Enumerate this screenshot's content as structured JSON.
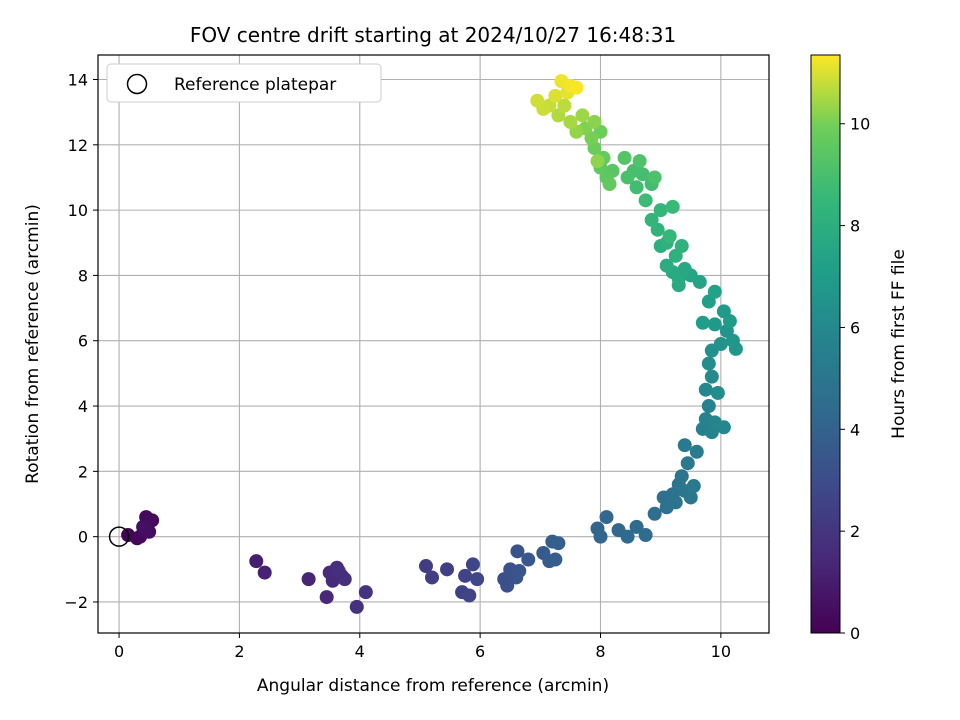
{
  "chart_data": {
    "type": "scatter",
    "title": "FOV centre drift starting at 2024/10/27 16:48:31",
    "xlabel": "Angular distance from reference (arcmin)",
    "ylabel": "Rotation from reference (arcmin)",
    "xlim": [
      -0.35,
      10.8
    ],
    "ylim": [
      -2.95,
      14.75
    ],
    "xticks": [
      0,
      2,
      4,
      6,
      8,
      10
    ],
    "yticks": [
      -2,
      0,
      2,
      4,
      6,
      8,
      10,
      12,
      14
    ],
    "grid": true,
    "colormap": "viridis",
    "colorbar": {
      "label": "Hours from first FF file",
      "range": [
        0,
        11.35
      ],
      "ticks": [
        0,
        2,
        4,
        6,
        8,
        10
      ]
    },
    "legend": {
      "placement": "top-left",
      "entries": [
        {
          "label": "Reference platepar",
          "marker": "open-circle",
          "color": "#000000"
        }
      ]
    },
    "reference_point": {
      "x": 0,
      "y": 0
    },
    "points": [
      {
        "x": 0.15,
        "y": 0.05,
        "c": 0.1
      },
      {
        "x": 0.3,
        "y": -0.05,
        "c": 0.2
      },
      {
        "x": 0.35,
        "y": 0.0,
        "c": 0.25
      },
      {
        "x": 0.45,
        "y": 0.6,
        "c": 0.3
      },
      {
        "x": 0.55,
        "y": 0.5,
        "c": 0.35
      },
      {
        "x": 0.42,
        "y": 0.2,
        "c": 0.4
      },
      {
        "x": 0.5,
        "y": 0.15,
        "c": 0.45
      },
      {
        "x": 0.4,
        "y": 0.3,
        "c": 0.5
      },
      {
        "x": 2.28,
        "y": -0.75,
        "c": 1.1
      },
      {
        "x": 2.42,
        "y": -1.1,
        "c": 1.2
      },
      {
        "x": 3.15,
        "y": -1.3,
        "c": 1.35
      },
      {
        "x": 3.45,
        "y": -1.85,
        "c": 1.45
      },
      {
        "x": 3.5,
        "y": -1.1,
        "c": 1.5
      },
      {
        "x": 3.55,
        "y": -1.35,
        "c": 1.55
      },
      {
        "x": 3.62,
        "y": -0.95,
        "c": 1.6
      },
      {
        "x": 3.7,
        "y": -1.2,
        "c": 1.65
      },
      {
        "x": 3.75,
        "y": -1.3,
        "c": 1.7
      },
      {
        "x": 3.65,
        "y": -1.05,
        "c": 1.72
      },
      {
        "x": 3.95,
        "y": -2.15,
        "c": 1.8
      },
      {
        "x": 4.1,
        "y": -1.7,
        "c": 1.9
      },
      {
        "x": 5.1,
        "y": -0.9,
        "c": 2.3
      },
      {
        "x": 5.2,
        "y": -1.25,
        "c": 2.35
      },
      {
        "x": 5.45,
        "y": -1.0,
        "c": 2.45
      },
      {
        "x": 5.7,
        "y": -1.7,
        "c": 2.55
      },
      {
        "x": 5.75,
        "y": -1.2,
        "c": 2.6
      },
      {
        "x": 5.82,
        "y": -1.8,
        "c": 2.65
      },
      {
        "x": 5.88,
        "y": -0.85,
        "c": 2.7
      },
      {
        "x": 5.95,
        "y": -1.3,
        "c": 2.75
      },
      {
        "x": 6.4,
        "y": -1.3,
        "c": 3.1
      },
      {
        "x": 6.45,
        "y": -1.5,
        "c": 3.15
      },
      {
        "x": 6.5,
        "y": -1.0,
        "c": 3.2
      },
      {
        "x": 6.55,
        "y": -1.15,
        "c": 3.25
      },
      {
        "x": 6.6,
        "y": -1.25,
        "c": 3.3
      },
      {
        "x": 6.62,
        "y": -0.45,
        "c": 3.35
      },
      {
        "x": 6.65,
        "y": -1.05,
        "c": 3.4
      },
      {
        "x": 6.8,
        "y": -0.7,
        "c": 3.5
      },
      {
        "x": 7.05,
        "y": -0.5,
        "c": 3.6
      },
      {
        "x": 7.15,
        "y": -0.75,
        "c": 3.7
      },
      {
        "x": 7.25,
        "y": -0.7,
        "c": 3.75
      },
      {
        "x": 7.2,
        "y": -0.15,
        "c": 3.8
      },
      {
        "x": 7.3,
        "y": -0.2,
        "c": 3.85
      },
      {
        "x": 7.95,
        "y": 0.25,
        "c": 4.1
      },
      {
        "x": 8.0,
        "y": 0.0,
        "c": 4.15
      },
      {
        "x": 8.1,
        "y": 0.6,
        "c": 4.2
      },
      {
        "x": 8.3,
        "y": 0.2,
        "c": 4.3
      },
      {
        "x": 8.45,
        "y": 0.0,
        "c": 4.35
      },
      {
        "x": 8.6,
        "y": 0.3,
        "c": 4.4
      },
      {
        "x": 8.75,
        "y": 0.05,
        "c": 4.5
      },
      {
        "x": 8.9,
        "y": 0.7,
        "c": 4.6
      },
      {
        "x": 9.05,
        "y": 1.2,
        "c": 4.7
      },
      {
        "x": 9.1,
        "y": 0.9,
        "c": 4.75
      },
      {
        "x": 9.2,
        "y": 1.3,
        "c": 4.8
      },
      {
        "x": 9.25,
        "y": 1.05,
        "c": 4.85
      },
      {
        "x": 9.3,
        "y": 1.6,
        "c": 4.9
      },
      {
        "x": 9.35,
        "y": 1.85,
        "c": 4.95
      },
      {
        "x": 9.4,
        "y": 1.4,
        "c": 5.0
      },
      {
        "x": 9.45,
        "y": 2.25,
        "c": 5.05
      },
      {
        "x": 9.5,
        "y": 1.2,
        "c": 5.1
      },
      {
        "x": 9.4,
        "y": 2.8,
        "c": 5.2
      },
      {
        "x": 9.55,
        "y": 1.55,
        "c": 5.25
      },
      {
        "x": 9.6,
        "y": 2.6,
        "c": 5.35
      },
      {
        "x": 9.7,
        "y": 3.3,
        "c": 5.5
      },
      {
        "x": 9.75,
        "y": 3.6,
        "c": 5.6
      },
      {
        "x": 9.8,
        "y": 4.0,
        "c": 5.7
      },
      {
        "x": 9.85,
        "y": 3.2,
        "c": 5.75
      },
      {
        "x": 9.9,
        "y": 3.5,
        "c": 5.8
      },
      {
        "x": 10.05,
        "y": 3.35,
        "c": 5.9
      },
      {
        "x": 9.75,
        "y": 4.5,
        "c": 6.0
      },
      {
        "x": 9.85,
        "y": 4.9,
        "c": 6.1
      },
      {
        "x": 9.95,
        "y": 4.4,
        "c": 6.2
      },
      {
        "x": 9.8,
        "y": 5.3,
        "c": 6.3
      },
      {
        "x": 9.85,
        "y": 5.7,
        "c": 6.4
      },
      {
        "x": 10.0,
        "y": 5.9,
        "c": 6.5
      },
      {
        "x": 10.1,
        "y": 6.3,
        "c": 6.6
      },
      {
        "x": 10.2,
        "y": 6.0,
        "c": 6.7
      },
      {
        "x": 10.25,
        "y": 5.75,
        "c": 6.75
      },
      {
        "x": 9.9,
        "y": 6.5,
        "c": 6.8
      },
      {
        "x": 10.05,
        "y": 6.9,
        "c": 6.9
      },
      {
        "x": 10.15,
        "y": 6.6,
        "c": 7.0
      },
      {
        "x": 9.7,
        "y": 6.55,
        "c": 7.1
      },
      {
        "x": 9.8,
        "y": 7.2,
        "c": 7.2
      },
      {
        "x": 9.9,
        "y": 7.5,
        "c": 7.3
      },
      {
        "x": 9.65,
        "y": 7.8,
        "c": 7.4
      },
      {
        "x": 9.5,
        "y": 8.0,
        "c": 7.5
      },
      {
        "x": 9.4,
        "y": 8.2,
        "c": 7.6
      },
      {
        "x": 9.3,
        "y": 7.9,
        "c": 7.7
      },
      {
        "x": 9.2,
        "y": 8.1,
        "c": 7.75
      },
      {
        "x": 9.3,
        "y": 7.7,
        "c": 7.8
      },
      {
        "x": 9.1,
        "y": 8.3,
        "c": 7.9
      },
      {
        "x": 9.0,
        "y": 8.9,
        "c": 8.0
      },
      {
        "x": 9.1,
        "y": 9.0,
        "c": 8.1
      },
      {
        "x": 9.25,
        "y": 8.6,
        "c": 8.15
      },
      {
        "x": 9.35,
        "y": 8.9,
        "c": 8.2
      },
      {
        "x": 8.95,
        "y": 9.4,
        "c": 8.3
      },
      {
        "x": 8.85,
        "y": 9.7,
        "c": 8.4
      },
      {
        "x": 9.0,
        "y": 10.0,
        "c": 8.45
      },
      {
        "x": 9.15,
        "y": 9.2,
        "c": 8.5
      },
      {
        "x": 9.2,
        "y": 10.1,
        "c": 8.6
      },
      {
        "x": 8.75,
        "y": 10.3,
        "c": 8.7
      },
      {
        "x": 8.6,
        "y": 10.7,
        "c": 8.8
      },
      {
        "x": 8.85,
        "y": 10.8,
        "c": 8.85
      },
      {
        "x": 8.7,
        "y": 11.1,
        "c": 8.9
      },
      {
        "x": 8.55,
        "y": 11.2,
        "c": 9.0
      },
      {
        "x": 8.45,
        "y": 11.0,
        "c": 9.05
      },
      {
        "x": 8.9,
        "y": 11.0,
        "c": 9.1
      },
      {
        "x": 8.65,
        "y": 11.5,
        "c": 9.2
      },
      {
        "x": 8.4,
        "y": 11.6,
        "c": 9.3
      },
      {
        "x": 8.2,
        "y": 11.2,
        "c": 9.4
      },
      {
        "x": 8.1,
        "y": 11.0,
        "c": 9.5
      },
      {
        "x": 8.0,
        "y": 11.3,
        "c": 9.55
      },
      {
        "x": 8.15,
        "y": 10.8,
        "c": 9.6
      },
      {
        "x": 8.05,
        "y": 11.6,
        "c": 9.7
      },
      {
        "x": 7.9,
        "y": 11.9,
        "c": 9.8
      },
      {
        "x": 8.0,
        "y": 12.4,
        "c": 9.9
      },
      {
        "x": 7.85,
        "y": 12.2,
        "c": 10.0
      },
      {
        "x": 7.75,
        "y": 12.5,
        "c": 10.1
      },
      {
        "x": 7.9,
        "y": 12.7,
        "c": 10.2
      },
      {
        "x": 7.95,
        "y": 11.5,
        "c": 10.25
      },
      {
        "x": 7.6,
        "y": 12.4,
        "c": 10.3
      },
      {
        "x": 7.7,
        "y": 12.9,
        "c": 10.4
      },
      {
        "x": 7.5,
        "y": 12.7,
        "c": 10.5
      },
      {
        "x": 7.3,
        "y": 12.9,
        "c": 10.6
      },
      {
        "x": 7.4,
        "y": 13.2,
        "c": 10.7
      },
      {
        "x": 7.15,
        "y": 13.2,
        "c": 10.8
      },
      {
        "x": 7.05,
        "y": 13.1,
        "c": 10.85
      },
      {
        "x": 6.95,
        "y": 13.35,
        "c": 10.9
      },
      {
        "x": 7.25,
        "y": 13.5,
        "c": 11.0
      },
      {
        "x": 7.45,
        "y": 13.6,
        "c": 11.1
      },
      {
        "x": 7.35,
        "y": 13.95,
        "c": 11.2
      },
      {
        "x": 7.5,
        "y": 13.8,
        "c": 11.25
      },
      {
        "x": 7.6,
        "y": 13.75,
        "c": 11.3
      }
    ]
  }
}
